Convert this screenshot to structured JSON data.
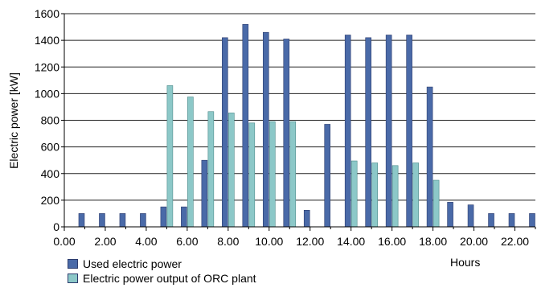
{
  "chart_data": {
    "type": "bar",
    "title": "",
    "xlabel": "Hours",
    "ylabel": "Electric power [kW]",
    "ylim": [
      0,
      1600
    ],
    "yticks": [
      0,
      200,
      400,
      600,
      800,
      1000,
      1200,
      1400,
      1600
    ],
    "xticks": [
      "0.00",
      "2.00",
      "4.00",
      "6.00",
      "8.00",
      "10.00",
      "12.00",
      "14.00",
      "16.00",
      "18.00",
      "20.00",
      "22.00"
    ],
    "xlim": [
      0,
      23
    ],
    "grid": "horizontal",
    "legend_position": "bottom-left",
    "x": [
      1,
      2,
      3,
      4,
      5,
      6,
      7,
      8,
      9,
      10,
      11,
      12,
      13,
      14,
      15,
      16,
      17,
      18,
      19,
      20,
      21,
      22,
      23
    ],
    "series": [
      {
        "name": "Used electric power",
        "color": "#4a6aa8",
        "values": [
          100,
          100,
          100,
          100,
          150,
          150,
          500,
          1420,
          1520,
          1460,
          1410,
          125,
          770,
          1440,
          1420,
          1440,
          1440,
          1050,
          185,
          165,
          100,
          100,
          100
        ]
      },
      {
        "name": "Electric power output of ORC plant",
        "color": "#8cc8c8",
        "values": [
          0,
          0,
          0,
          0,
          1060,
          975,
          865,
          855,
          780,
          790,
          790,
          0,
          0,
          495,
          480,
          460,
          480,
          350,
          0,
          0,
          0,
          0,
          0
        ]
      }
    ]
  }
}
